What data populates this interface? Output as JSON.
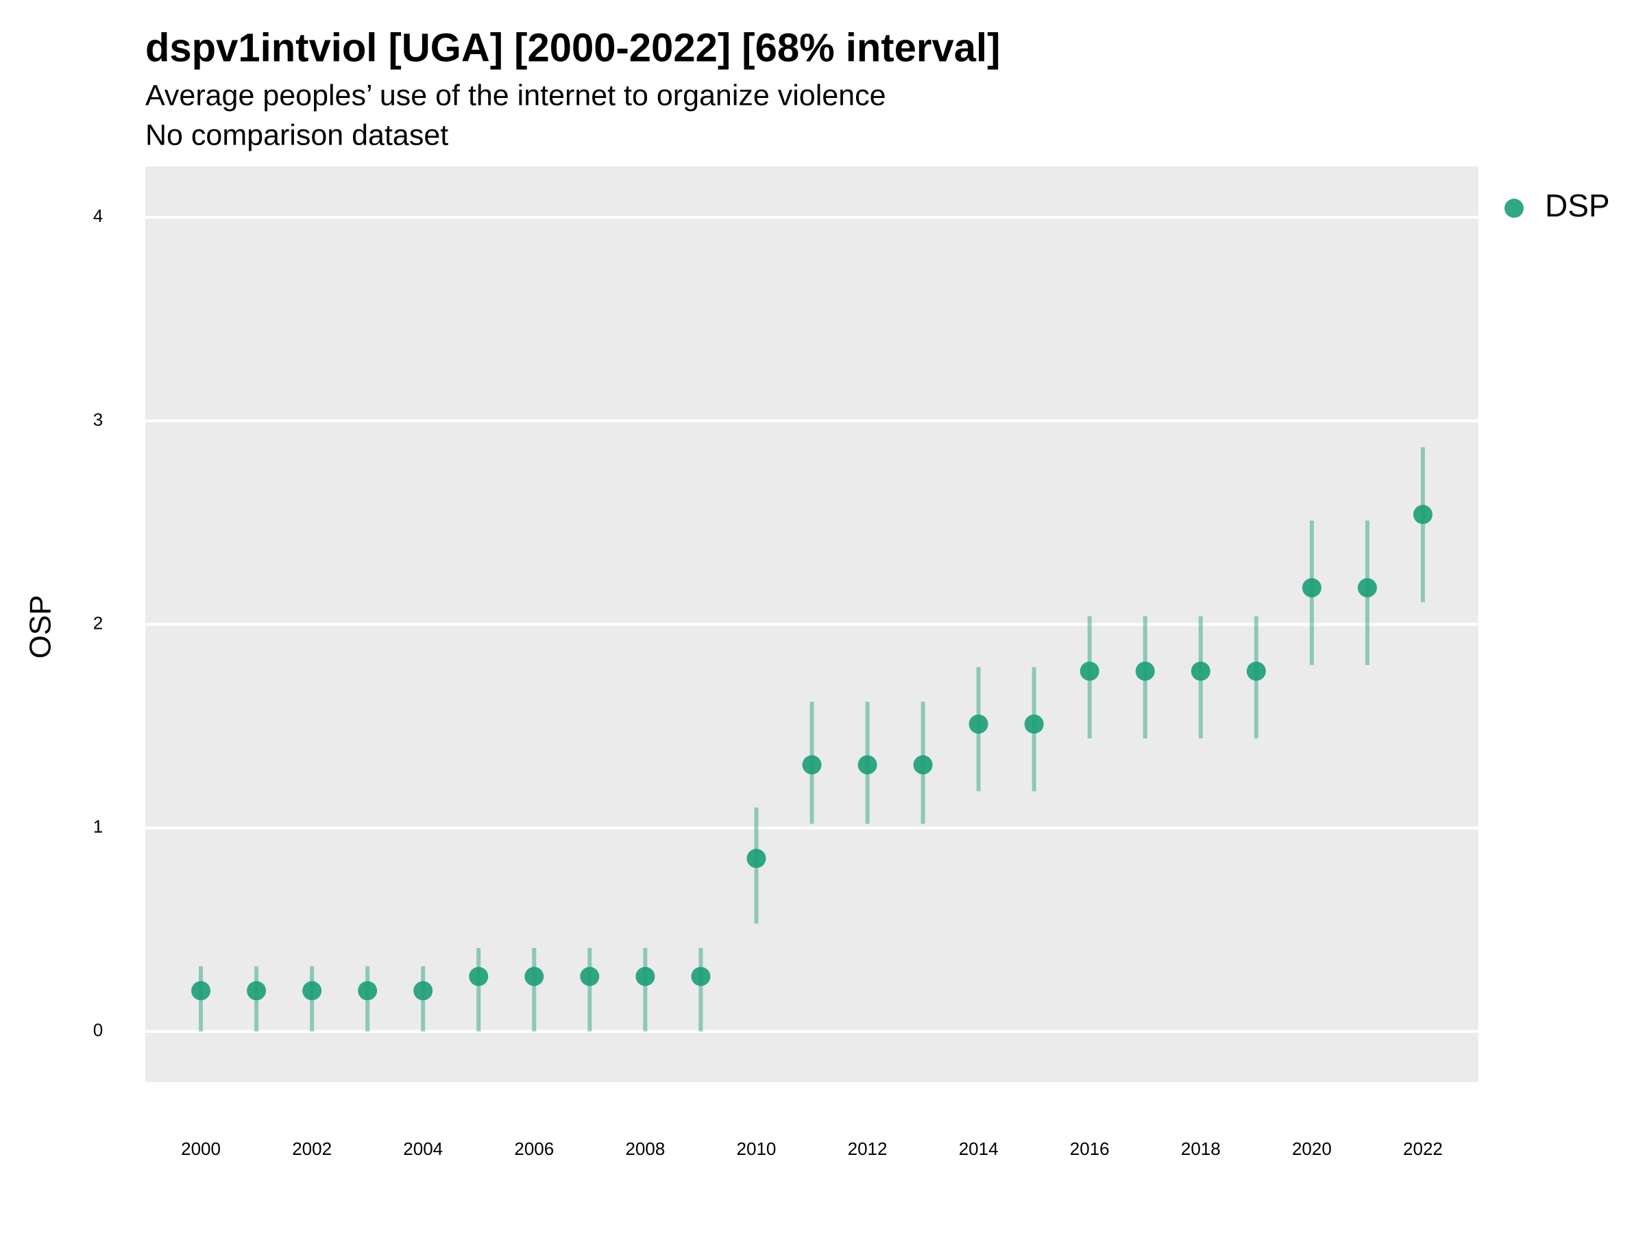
{
  "chart_data": {
    "type": "pointrange",
    "title": "dspv1intviol [UGA] [2000-2022] [68% interval]",
    "subtitle": "Average peoples’ use of the internet to organize violence",
    "note": "No comparison dataset",
    "y_label": "OSP",
    "x": [
      2000,
      2001,
      2002,
      2003,
      2004,
      2005,
      2006,
      2007,
      2008,
      2009,
      2010,
      2011,
      2012,
      2013,
      2014,
      2015,
      2016,
      2017,
      2018,
      2019,
      2020,
      2021,
      2022
    ],
    "series": [
      {
        "name": "DSP",
        "color": "#1b9e77",
        "values": [
          0.2,
          0.2,
          0.2,
          0.2,
          0.2,
          0.27,
          0.27,
          0.27,
          0.27,
          0.27,
          0.85,
          1.31,
          1.31,
          1.31,
          1.51,
          1.51,
          1.77,
          1.77,
          1.77,
          1.77,
          2.18,
          2.18,
          2.54
        ],
        "lower": [
          0,
          0,
          0,
          0,
          0,
          0,
          0,
          0,
          0,
          0,
          0.53,
          1.02,
          1.02,
          1.02,
          1.18,
          1.18,
          1.44,
          1.44,
          1.44,
          1.44,
          1.8,
          1.8,
          2.11
        ],
        "upper": [
          0.32,
          0.32,
          0.32,
          0.32,
          0.32,
          0.41,
          0.41,
          0.41,
          0.41,
          0.41,
          1.1,
          1.62,
          1.62,
          1.62,
          1.79,
          1.79,
          2.04,
          2.04,
          2.04,
          2.04,
          2.51,
          2.51,
          2.87
        ]
      }
    ],
    "xlim": [
      1999,
      2023
    ],
    "xticks": [
      2000,
      2002,
      2004,
      2006,
      2008,
      2010,
      2012,
      2014,
      2016,
      2018,
      2020,
      2022
    ],
    "ylim": [
      -0.25,
      4.25
    ],
    "yticks": [
      0,
      1,
      2,
      3,
      4
    ],
    "grid": true,
    "legend": "right"
  }
}
